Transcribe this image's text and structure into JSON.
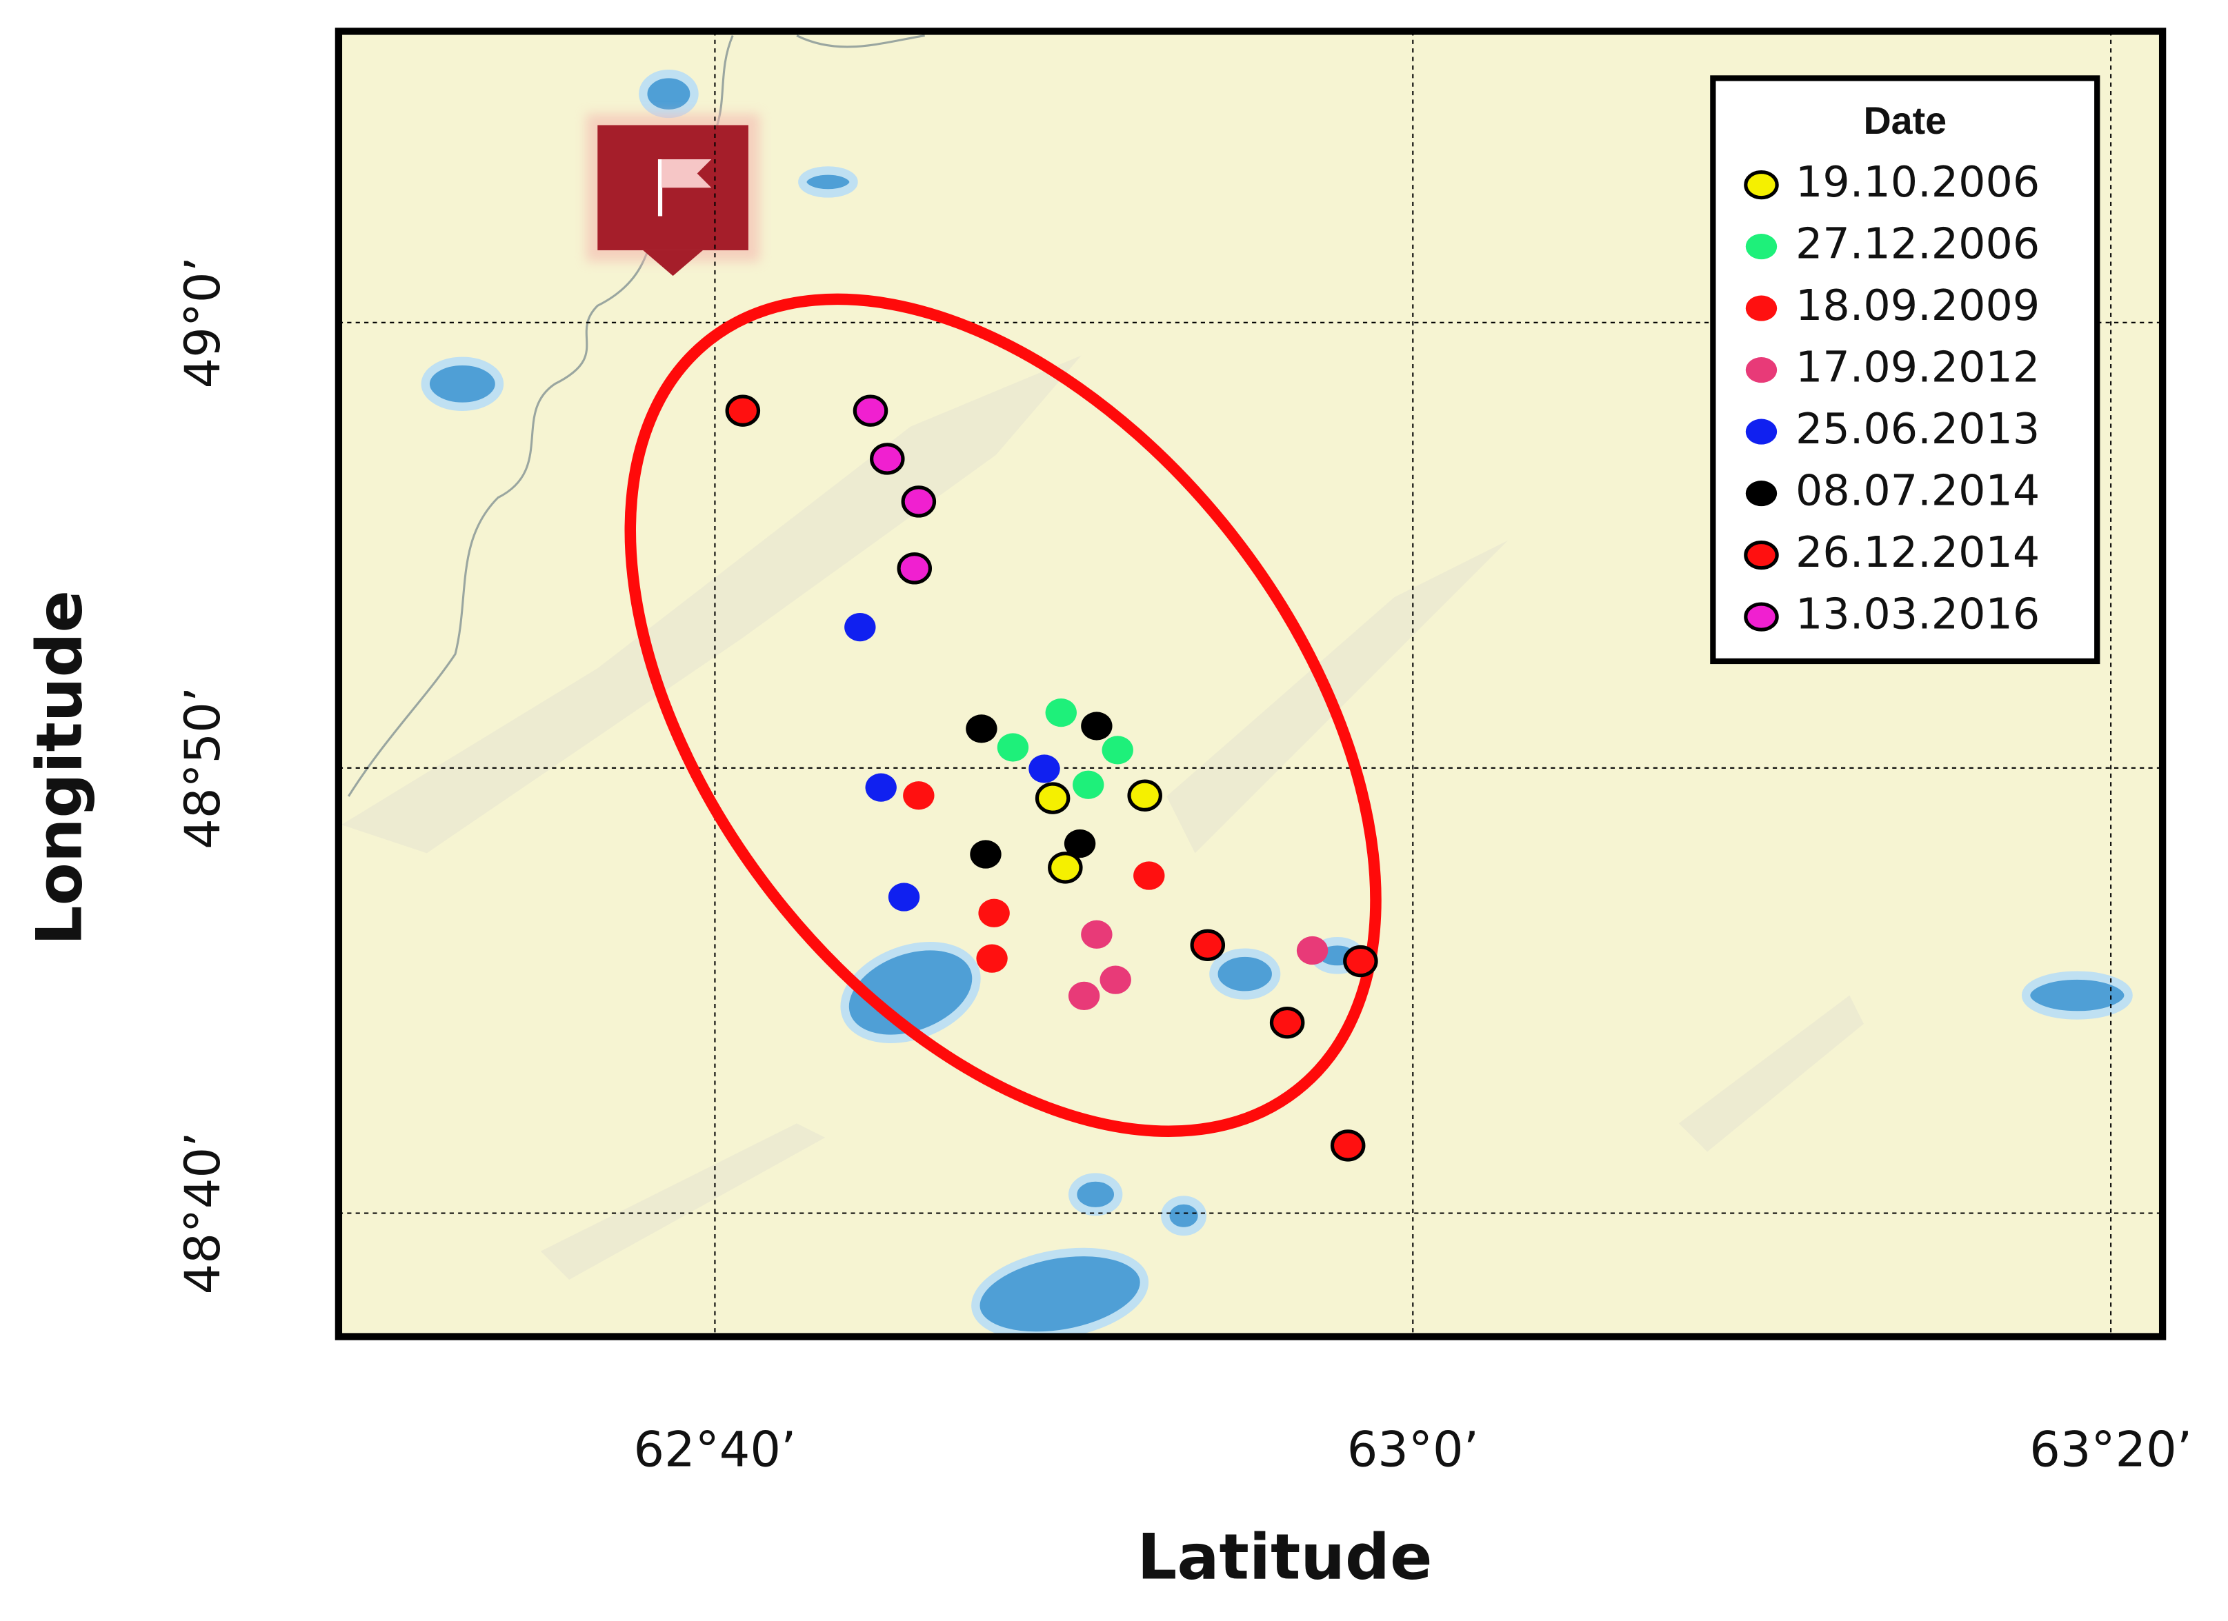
{
  "chart_data": {
    "type": "scatter",
    "x_label": "Latitude",
    "y_label": "Longitude",
    "legend_title": "Date",
    "legend": "upper right",
    "grid": true,
    "xlim": [
      62.487,
      63.358
    ],
    "ylim": [
      48.6205,
      49.109
    ],
    "xticks": [
      {
        "value": 62.6667,
        "label": "62°40’"
      },
      {
        "value": 63,
        "label": "63°0’"
      },
      {
        "value": 63.3333,
        "label": "63°20’"
      }
    ],
    "yticks": [
      {
        "value": 48.6667,
        "label": "48°40’"
      },
      {
        "value": 48.8333,
        "label": "48°50’"
      },
      {
        "value": 49,
        "label": "49°0’"
      }
    ],
    "series": [
      {
        "name": "19.10.2006",
        "color": "#f5f000",
        "edgecolor": "#000000",
        "x": [
          62.828,
          62.872,
          62.834
        ],
        "y": [
          48.822,
          48.823,
          48.796
        ]
      },
      {
        "name": "27.12.2006",
        "color": "#1ef07a",
        "edgecolor": null,
        "x": [
          62.832,
          62.809,
          62.859,
          62.845
        ],
        "y": [
          48.854,
          48.841,
          48.84,
          48.827
        ]
      },
      {
        "name": "18.09.2009",
        "color": "#ff1010",
        "edgecolor": null,
        "x": [
          62.764,
          62.874,
          62.8,
          62.799
        ],
        "y": [
          48.823,
          48.793,
          48.779,
          48.762
        ]
      },
      {
        "name": "17.09.2012",
        "color": "#e83a78",
        "edgecolor": null,
        "x": [
          62.849,
          62.858,
          62.843,
          62.952
        ],
        "y": [
          48.771,
          48.754,
          48.748,
          48.765
        ]
      },
      {
        "name": "25.06.2013",
        "color": "#1020f0",
        "edgecolor": null,
        "x": [
          62.736,
          62.746,
          62.824,
          62.757
        ],
        "y": [
          48.886,
          48.826,
          48.833,
          48.785
        ]
      },
      {
        "name": "08.07.2014",
        "color": "#000000",
        "edgecolor": null,
        "x": [
          62.794,
          62.849,
          62.796,
          62.841
        ],
        "y": [
          48.848,
          48.849,
          48.801,
          48.805
        ]
      },
      {
        "name": "26.12.2014",
        "color": "#ff1010",
        "edgecolor": "#000000",
        "x": [
          62.68,
          62.902,
          62.975,
          62.94,
          62.969
        ],
        "y": [
          48.967,
          48.767,
          48.761,
          48.738,
          48.692
        ]
      },
      {
        "name": "13.03.2016",
        "color": "#f020d0",
        "edgecolor": "#000000",
        "x": [
          62.741,
          62.749,
          62.764,
          62.762
        ],
        "y": [
          48.967,
          48.949,
          48.933,
          48.908
        ]
      }
    ]
  }
}
